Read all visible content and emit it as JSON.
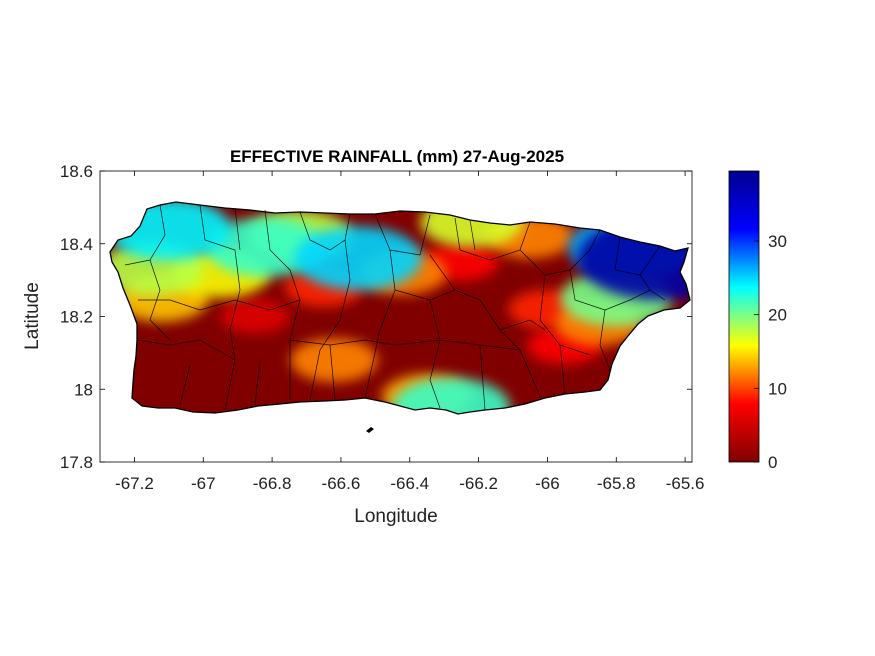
{
  "chart_data": {
    "type": "heatmap",
    "title": "EFFECTIVE RAINFALL (mm) 27-Aug-2025",
    "xlabel": "Longitude",
    "ylabel": "Latitude",
    "xlim": [
      -67.3,
      -65.58
    ],
    "ylim": [
      17.8,
      18.6
    ],
    "x_ticks": [
      "-67.2",
      "-67",
      "-66.8",
      "-66.6",
      "-66.4",
      "-66.2",
      "-66",
      "-65.8",
      "-65.6"
    ],
    "x_tick_values": [
      -67.2,
      -67.0,
      -66.8,
      -66.6,
      -66.4,
      -66.2,
      -66.0,
      -65.8,
      -65.6
    ],
    "y_ticks": [
      "18.6",
      "18.4",
      "18.2",
      "18",
      "17.8"
    ],
    "y_tick_values": [
      18.6,
      18.4,
      18.2,
      18.0,
      17.8
    ],
    "colorbar": {
      "colormap": "jet-reversed",
      "range": [
        0,
        39.5
      ],
      "ticks": [
        "0",
        "10",
        "20",
        "30"
      ],
      "tick_values": [
        0,
        10,
        20,
        30
      ]
    },
    "colormap_stops": [
      "#00008f",
      "#0000ff",
      "#00ffff",
      "#ffff00",
      "#ff0000",
      "#800000"
    ],
    "background_value": 0,
    "field_features": [
      {
        "lon": -67.15,
        "lat": 18.33,
        "value": 18
      },
      {
        "lon": -67.12,
        "lat": 18.25,
        "value": 14
      },
      {
        "lon": -67.1,
        "lat": 18.44,
        "value": 24
      },
      {
        "lon": -66.95,
        "lat": 18.32,
        "value": 16
      },
      {
        "lon": -66.82,
        "lat": 18.39,
        "value": 22
      },
      {
        "lon": -66.72,
        "lat": 18.42,
        "value": 18
      },
      {
        "lon": -66.65,
        "lat": 18.28,
        "value": 9
      },
      {
        "lon": -66.55,
        "lat": 18.36,
        "value": 25
      },
      {
        "lon": -66.42,
        "lat": 18.32,
        "value": 12
      },
      {
        "lon": -66.62,
        "lat": 18.08,
        "value": 12
      },
      {
        "lon": -66.35,
        "lat": 17.98,
        "value": 13
      },
      {
        "lon": -66.28,
        "lat": 17.95,
        "value": 22
      },
      {
        "lon": -66.22,
        "lat": 18.46,
        "value": 17
      },
      {
        "lon": -66.05,
        "lat": 18.42,
        "value": 12
      },
      {
        "lon": -65.75,
        "lat": 18.39,
        "value": 26
      },
      {
        "lon": -65.67,
        "lat": 18.36,
        "value": 38
      },
      {
        "lon": -65.8,
        "lat": 18.25,
        "value": 20
      },
      {
        "lon": -65.85,
        "lat": 18.18,
        "value": 12
      },
      {
        "lon": -65.95,
        "lat": 18.12,
        "value": 8
      },
      {
        "lon": -66.0,
        "lat": 18.22,
        "value": 9
      },
      {
        "lon": -66.25,
        "lat": 18.35,
        "value": 8
      },
      {
        "lon": -66.85,
        "lat": 18.2,
        "value": 6
      }
    ]
  }
}
